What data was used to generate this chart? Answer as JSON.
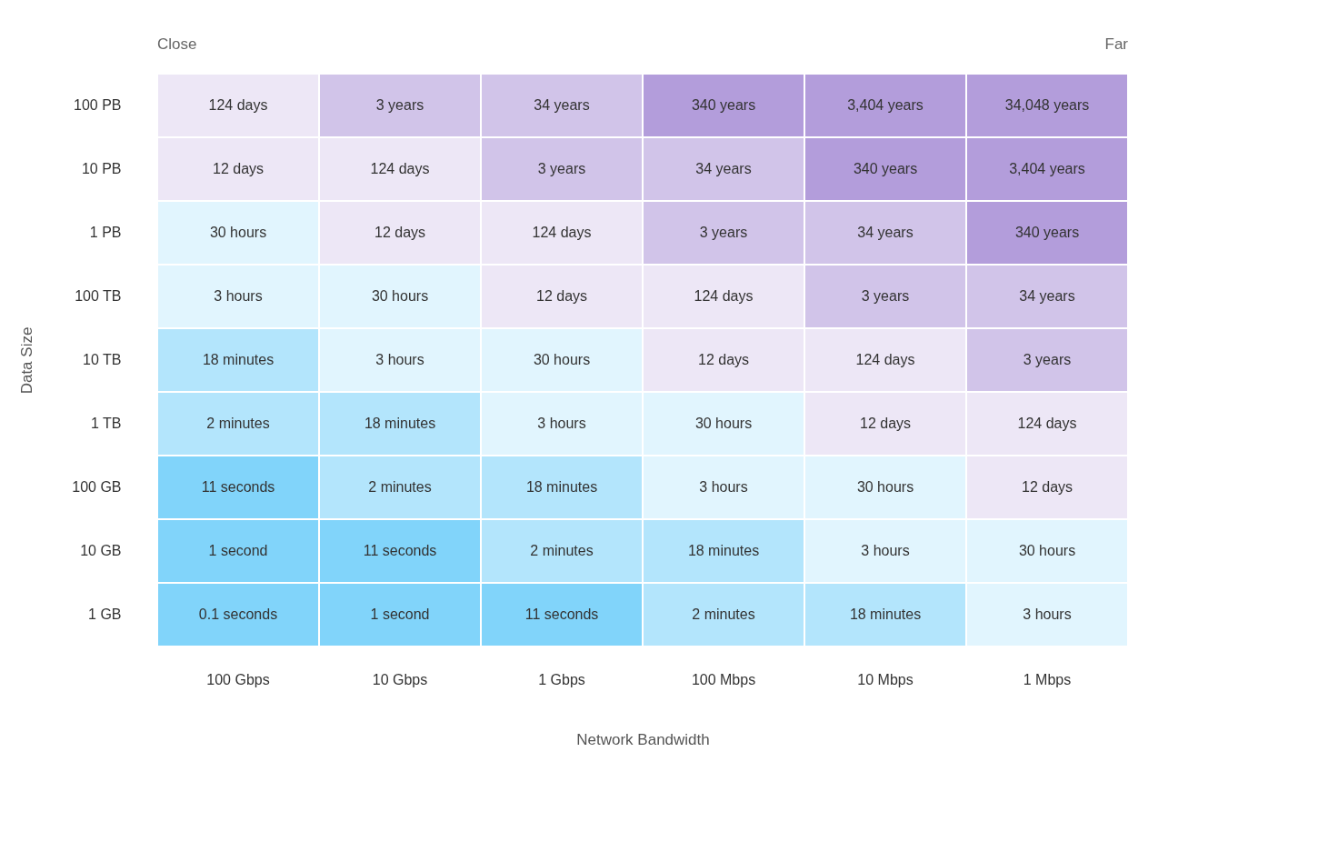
{
  "chart_data": {
    "type": "heatmap",
    "xlabel": "Network Bandwidth",
    "ylabel": "Data Size",
    "annotations": [
      "Close",
      "Far"
    ],
    "categories": [
      "100 Gbps",
      "10 Gbps",
      "1 Gbps",
      "100 Mbps",
      "10 Mbps",
      "1 Mbps"
    ],
    "y_categories": [
      "100 PB",
      "10 PB",
      "1 PB",
      "100 TB",
      "10 TB",
      "1 TB",
      "100 GB",
      "10 GB",
      "1 GB"
    ],
    "cells": [
      [
        124,
        3,
        34,
        340,
        3404,
        34048
      ],
      [
        12,
        124,
        3,
        34,
        340,
        3404
      ],
      [
        30,
        12,
        124,
        3,
        34,
        340
      ],
      [
        3,
        30,
        12,
        124,
        3,
        34
      ],
      [
        18,
        3,
        30,
        12,
        124,
        3
      ],
      [
        2,
        18,
        3,
        30,
        12,
        124
      ],
      [
        11,
        2,
        18,
        3,
        30,
        12
      ],
      [
        1,
        11,
        2,
        18,
        3,
        30
      ],
      [
        0.1,
        1,
        11,
        2,
        18,
        3
      ]
    ],
    "cell_labels": [
      [
        "124 days",
        "3 years",
        "34 years",
        "340 years",
        "3,404 years",
        "34,048 years"
      ],
      [
        "12 days",
        "124 days",
        "3 years",
        "34 years",
        "340 years",
        "3,404 years"
      ],
      [
        "30 hours",
        "12 days",
        "124 days",
        "3 years",
        "34 years",
        "340 years"
      ],
      [
        "3 hours",
        "30 hours",
        "12 days",
        "124 days",
        "3 years",
        "34 years"
      ],
      [
        "18 minutes",
        "3 hours",
        "30 hours",
        "12 days",
        "124 days",
        "3 years"
      ],
      [
        "2 minutes",
        "18 minutes",
        "3 hours",
        "30 hours",
        "12 days",
        "124 days"
      ],
      [
        "11 seconds",
        "2 minutes",
        "18 minutes",
        "3 hours",
        "30 hours",
        "12 days"
      ],
      [
        "1 second",
        "11 seconds",
        "2 minutes",
        "18 minutes",
        "3 hours",
        "30 hours"
      ],
      [
        "0.1 seconds",
        "1 second",
        "11 seconds",
        "2 minutes",
        "18 minutes",
        "3 hours"
      ]
    ],
    "colors": [
      [
        "#ede7f6",
        "#d1c4e9",
        "#d1c4e9",
        "#b39ddb",
        "#b39ddb",
        "#b39ddb"
      ],
      [
        "#ede7f6",
        "#ede7f6",
        "#d1c4e9",
        "#d1c4e9",
        "#b39ddb",
        "#b39ddb"
      ],
      [
        "#e1f5fe",
        "#ede7f6",
        "#ede7f6",
        "#d1c4e9",
        "#d1c4e9",
        "#b39ddb"
      ],
      [
        "#e1f5fe",
        "#e1f5fe",
        "#ede7f6",
        "#ede7f6",
        "#d1c4e9",
        "#d1c4e9"
      ],
      [
        "#b3e5fc",
        "#e1f5fe",
        "#e1f5fe",
        "#ede7f6",
        "#ede7f6",
        "#d1c4e9"
      ],
      [
        "#b3e5fc",
        "#b3e5fc",
        "#e1f5fe",
        "#e1f5fe",
        "#ede7f6",
        "#ede7f6"
      ],
      [
        "#81d4fa",
        "#b3e5fc",
        "#b3e5fc",
        "#e1f5fe",
        "#e1f5fe",
        "#ede7f6"
      ],
      [
        "#81d4fa",
        "#81d4fa",
        "#b3e5fc",
        "#b3e5fc",
        "#e1f5fe",
        "#e1f5fe"
      ],
      [
        "#81d4fa",
        "#81d4fa",
        "#81d4fa",
        "#b3e5fc",
        "#b3e5fc",
        "#e1f5fe"
      ]
    ],
    "grid": false
  }
}
